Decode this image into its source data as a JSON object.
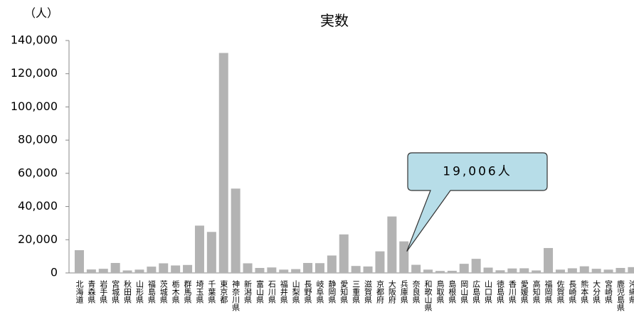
{
  "chart_data": {
    "type": "bar",
    "title": "実数",
    "y_label": "（人）",
    "categories": [
      "北海道",
      "青森県",
      "岩手県",
      "宮城県",
      "秋田県",
      "山形県",
      "福島県",
      "茨城県",
      "栃木県",
      "群馬県",
      "埼玉県",
      "千葉県",
      "東京都",
      "神奈川県",
      "新潟県",
      "富山県",
      "石川県",
      "福井県",
      "山梨県",
      "長野県",
      "岐阜県",
      "静岡県",
      "愛知県",
      "三重県",
      "滋賀県",
      "京都府",
      "大阪府",
      "兵庫県",
      "奈良県",
      "和歌山県",
      "鳥取県",
      "島根県",
      "岡山県",
      "広島県",
      "山口県",
      "徳島県",
      "香川県",
      "愛媛県",
      "高知県",
      "福岡県",
      "佐賀県",
      "長崎県",
      "熊本県",
      "大分県",
      "宮崎県",
      "鹿児島県",
      "沖縄県"
    ],
    "values": [
      13700,
      2100,
      2500,
      6000,
      1500,
      2000,
      3800,
      5800,
      4500,
      4800,
      28500,
      24700,
      132500,
      50800,
      5800,
      3000,
      3300,
      2000,
      2300,
      6000,
      5900,
      10500,
      23200,
      4200,
      3900,
      13000,
      34000,
      19006,
      4900,
      2000,
      1200,
      1300,
      5500,
      8500,
      3200,
      1600,
      2700,
      2800,
      1500,
      15000,
      2000,
      2800,
      4000,
      2500,
      2000,
      3000,
      3500
    ],
    "color": "#b3b3b3",
    "ylim": [
      0,
      140000
    ],
    "yticks": [
      0,
      {
        "value": 20000,
        "label": "20,000"
      },
      {
        "value": 40000,
        "label": "40,000"
      },
      {
        "value": 60000,
        "label": "60,000"
      },
      {
        "value": 80000,
        "label": "80,000"
      },
      {
        "value": 100000,
        "label": "100,000"
      },
      {
        "value": 120000,
        "label": "120,000"
      },
      {
        "value": 140000,
        "label": "140,000"
      }
    ],
    "grid": false,
    "annotation": {
      "text": "19,006人",
      "index": 27,
      "color": "#b7dde8"
    }
  }
}
